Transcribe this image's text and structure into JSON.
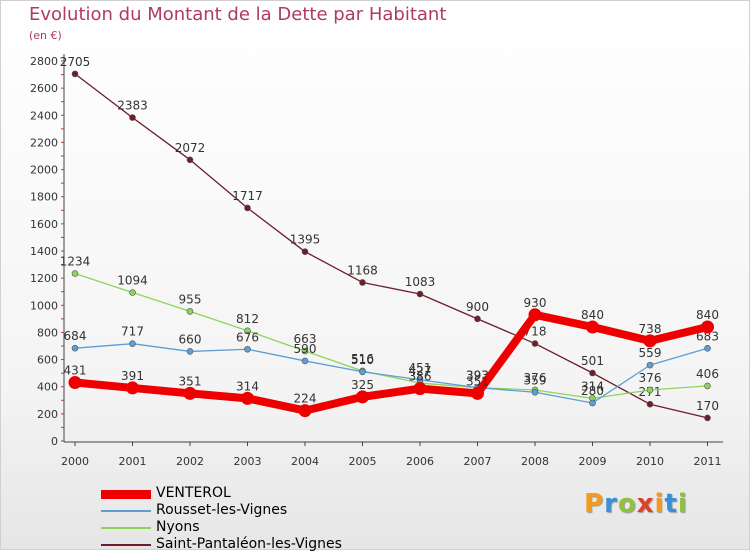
{
  "title": "Evolution du Montant de la Dette par Habitant",
  "subtitle": "(en €)",
  "brand": "Proxiti",
  "chart_data": {
    "type": "line",
    "title": "Evolution du Montant de la Dette par Habitant",
    "ylabel": "(en €)",
    "x": [
      "2000",
      "2001",
      "2002",
      "2003",
      "2004",
      "2005",
      "2006",
      "2007",
      "2008",
      "2009",
      "2010",
      "2011"
    ],
    "y_ticks": [
      "0",
      "200",
      "400",
      "600",
      "800",
      "1000",
      "1200",
      "1400",
      "1600",
      "1800",
      "2000",
      "2200",
      "2400",
      "2600",
      "2800"
    ],
    "ylim": [
      0,
      2800
    ],
    "grid": false,
    "legend": "bottom-left",
    "series": [
      {
        "name": "Saint-Pantaléon-les-Vignes",
        "color": "#6e1d2a",
        "values": [
          2705,
          2383,
          2072,
          1717,
          1395,
          1168,
          1083,
          900,
          718,
          501,
          271,
          170
        ],
        "labels": [
          "2705",
          "2383",
          "2072",
          "1717",
          "1395",
          "1168",
          "1083",
          "900",
          "718",
          "501",
          "271",
          "170"
        ]
      },
      {
        "name": "Nyons",
        "color": "#8ed45a",
        "values": [
          1234,
          1094,
          955,
          812,
          663,
          516,
          427,
          393,
          376,
          314,
          376,
          406
        ],
        "labels": [
          "1234",
          "1094",
          "955",
          "812",
          "663",
          "516",
          "427",
          "393",
          "376",
          "314",
          "376",
          "406"
        ]
      },
      {
        "name": "Rousset-les-Vignes",
        "color": "#5f9dd3",
        "values": [
          684,
          717,
          660,
          676,
          590,
          510,
          451,
          393,
          359,
          280,
          559,
          683
        ],
        "labels": [
          "684",
          "717",
          "660",
          "676",
          "590",
          "510",
          "451",
          "393",
          "359",
          "280",
          "559",
          "683"
        ]
      },
      {
        "name": "VENTEROL",
        "color": "#ee0000",
        "values": [
          431,
          391,
          351,
          314,
          224,
          325,
          386,
          351,
          930,
          840,
          738,
          840
        ],
        "labels": [
          "431",
          "391",
          "351",
          "314",
          "224",
          "325",
          "386",
          "351",
          "930",
          "840",
          "738",
          "840"
        ]
      }
    ]
  },
  "legend": [
    {
      "name": "VENTEROL",
      "color": "#ee0000"
    },
    {
      "name": "Rousset-les-Vignes",
      "color": "#5f9dd3"
    },
    {
      "name": "Nyons",
      "color": "#8ed45a"
    },
    {
      "name": "Saint-Pantaléon-les-Vignes",
      "color": "#6e1d2a"
    }
  ]
}
